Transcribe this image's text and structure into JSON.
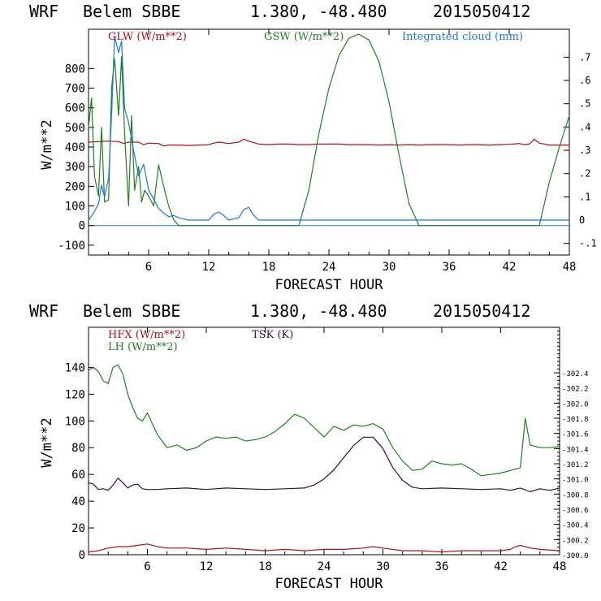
{
  "colors": {
    "red": "#b01010",
    "green": "#208020",
    "blue": "#1a78d8",
    "purple": "#3a0a4a"
  },
  "panels": {
    "top": {
      "model": "WRF",
      "station": "Belem SBBE",
      "coords": "1.380, -48.480",
      "run": "2015050412",
      "legend": {
        "glw": "GLW (W/m**2)",
        "gsw": "GSW (W/m**2)",
        "cloud": "Integrated cloud (mm)"
      },
      "ylabel": "W/m**2",
      "xlabel": "FORECAST HOUR"
    },
    "bottom": {
      "model": "WRF",
      "station": "Belem SBBE",
      "coords": "1.380, -48.480",
      "run": "2015050412",
      "legend": {
        "hfx": "HFX (W/m**2)",
        "lh": "LH  (W/m**2)",
        "tsk": "TSK (K)"
      },
      "ylabel": "W/m**2",
      "xlabel": "FORECAST HOUR"
    }
  },
  "chart_data": [
    {
      "type": "line",
      "title": "WRF  Belem SBBE  1.380, -48.480  2015050412",
      "xlabel": "FORECAST HOUR",
      "ylabel": "W/m**2",
      "xlim": [
        0,
        48
      ],
      "ylim": [
        -150,
        1000
      ],
      "y2lim": [
        -0.15,
        0.82
      ],
      "x_ticks": [
        "6",
        "12",
        "18",
        "24",
        "30",
        "36",
        "42",
        "48"
      ],
      "y_ticks": [
        "-100",
        "0",
        "100",
        "200",
        "300",
        "400",
        "500",
        "600",
        "700",
        "800"
      ],
      "y2_ticks": [
        "-.1",
        "0",
        ".1",
        ".2",
        ".3",
        ".4",
        ".5",
        ".6",
        ".7"
      ],
      "series": [
        {
          "name": "GLW (W/m**2)",
          "axis": "left",
          "x": [
            0,
            1,
            2,
            3,
            3.5,
            4,
            5,
            5.5,
            6,
            7,
            7.5,
            8,
            9,
            10,
            11,
            12,
            12.5,
            13,
            14,
            15,
            15.5,
            16,
            17,
            18,
            19,
            20,
            21,
            22,
            23,
            24,
            25,
            26,
            27,
            28,
            29,
            30,
            31,
            32,
            33,
            34,
            35,
            36,
            37,
            38,
            39,
            40,
            41,
            42,
            43,
            43.5,
            44,
            44.5,
            45,
            46,
            47,
            48
          ],
          "y": [
            425,
            428,
            430,
            428,
            418,
            425,
            425,
            412,
            420,
            418,
            405,
            410,
            410,
            408,
            410,
            412,
            420,
            425,
            418,
            425,
            440,
            430,
            415,
            412,
            415,
            415,
            412,
            412,
            415,
            415,
            415,
            412,
            412,
            412,
            410,
            412,
            410,
            412,
            410,
            412,
            412,
            412,
            410,
            412,
            412,
            410,
            412,
            414,
            418,
            412,
            415,
            440,
            420,
            410,
            410,
            410
          ]
        },
        {
          "name": "GSW (W/m**2)",
          "axis": "left",
          "x": [
            0,
            0.3,
            0.6,
            1,
            1.3,
            1.6,
            2,
            2.3,
            2.6,
            3,
            3.3,
            3.6,
            4,
            4.3,
            4.6,
            5,
            5.3,
            5.6,
            6,
            6.5,
            7,
            7.5,
            8,
            8.5,
            9,
            21,
            22,
            23,
            24,
            25,
            26,
            27,
            28,
            29,
            30,
            31,
            32,
            33,
            45,
            46,
            47,
            48
          ],
          "y": [
            500,
            650,
            250,
            150,
            500,
            120,
            130,
            700,
            850,
            560,
            860,
            470,
            100,
            560,
            180,
            300,
            120,
            180,
            150,
            100,
            310,
            200,
            100,
            30,
            0,
            0,
            180,
            470,
            700,
            865,
            955,
            975,
            945,
            835,
            630,
            360,
            110,
            0,
            0,
            220,
            400,
            560
          ]
        },
        {
          "name": "Integrated cloud (mm)",
          "axis": "right",
          "x": [
            0,
            0.5,
            1,
            1.3,
            1.6,
            2,
            2.3,
            2.6,
            3,
            3.3,
            3.6,
            4,
            4.5,
            5,
            5.5,
            6,
            6.5,
            7,
            7.5,
            8,
            8.5,
            9,
            9.5,
            10,
            12,
            12.5,
            13,
            13.5,
            14,
            15,
            15.5,
            16,
            16.5,
            17,
            44,
            48
          ],
          "y": [
            0,
            0.03,
            0.07,
            0.15,
            0.1,
            0.18,
            0.45,
            0.79,
            0.72,
            0.77,
            0.48,
            0.42,
            0.3,
            0.19,
            0.24,
            0.13,
            0.09,
            0.05,
            0.03,
            0.015,
            0.02,
            0.01,
            0.005,
            0,
            0,
            0.025,
            0.035,
            0.02,
            0,
            0.01,
            0.045,
            0.055,
            0.02,
            0,
            0,
            0
          ]
        }
      ]
    },
    {
      "type": "line",
      "title": "WRF  Belem SBBE  1.380, -48.480  2015050412",
      "xlabel": "FORECAST HOUR",
      "ylabel": "W/m**2",
      "xlim": [
        0,
        48
      ],
      "ylim": [
        0,
        170
      ],
      "y2lim": [
        300.0,
        303.0
      ],
      "x_ticks": [
        "6",
        "12",
        "18",
        "24",
        "30",
        "36",
        "42",
        "48"
      ],
      "y_ticks": [
        "0",
        "20",
        "40",
        "60",
        "80",
        "100",
        "120",
        "140"
      ],
      "y2_ticks": [
        "300.0",
        "300.2",
        "300.4",
        "300.6",
        "300.8",
        "301.0",
        "301.2",
        "301.4",
        "301.6",
        "301.8",
        "302.0",
        "302.2",
        "302.4"
      ],
      "series": [
        {
          "name": "HFX (W/m**2)",
          "axis": "left",
          "x": [
            0,
            1,
            2,
            3,
            4,
            5,
            6,
            7,
            8,
            10,
            12,
            14,
            16,
            18,
            20,
            22,
            24,
            26,
            28,
            29,
            30,
            32,
            34,
            36,
            38,
            40,
            42,
            43,
            43.5,
            44,
            45,
            46,
            48
          ],
          "y": [
            2,
            3,
            5,
            6,
            6,
            7,
            8,
            6,
            5,
            5,
            4,
            5,
            4,
            3,
            4,
            3,
            4,
            4,
            5,
            6,
            5,
            3,
            3,
            2,
            3,
            3,
            3,
            4,
            6,
            7,
            5,
            4,
            3
          ]
        },
        {
          "name": "LH  (W/m**2)",
          "axis": "left",
          "x": [
            0,
            0.5,
            1,
            1.5,
            2,
            2.5,
            3,
            3.5,
            4,
            4.5,
            5,
            5.5,
            6,
            6.5,
            7,
            7.5,
            8,
            9,
            10,
            11,
            12,
            13,
            14,
            15,
            16,
            17,
            18,
            19,
            20,
            21,
            22,
            23,
            24,
            25,
            26,
            27,
            28,
            29,
            30,
            31,
            32,
            33,
            34,
            35,
            36,
            37,
            38,
            39,
            40,
            41,
            42,
            43,
            44,
            44.5,
            45,
            46,
            47,
            48
          ],
          "y": [
            138,
            140,
            137,
            130,
            128,
            140,
            142,
            135,
            120,
            110,
            102,
            100,
            106,
            98,
            90,
            85,
            80,
            82,
            78,
            80,
            85,
            88,
            87,
            88,
            85,
            86,
            88,
            92,
            98,
            105,
            102,
            95,
            88,
            96,
            93,
            97,
            96,
            98,
            94,
            80,
            70,
            63,
            64,
            70,
            68,
            67,
            68,
            64,
            59,
            60,
            61,
            63,
            65,
            102,
            82,
            80,
            80,
            81
          ]
        },
        {
          "name": "TSK (K)",
          "axis": "right",
          "x": [
            0,
            0.5,
            1,
            1.5,
            2,
            2.5,
            3,
            3.5,
            4,
            4.5,
            5,
            5.5,
            6,
            7,
            8,
            10,
            12,
            14,
            16,
            18,
            20,
            22,
            23,
            24,
            25,
            26,
            27,
            28,
            29,
            30,
            31,
            32,
            33,
            34,
            36,
            38,
            40,
            42,
            43,
            44,
            45,
            46,
            47,
            48
          ],
          "y": [
            300.95,
            300.93,
            300.86,
            300.87,
            300.85,
            300.92,
            301.01,
            300.95,
            300.88,
            300.92,
            300.93,
            300.87,
            300.86,
            300.86,
            300.87,
            300.88,
            300.86,
            300.88,
            300.87,
            300.86,
            300.87,
            300.88,
            300.92,
            301.0,
            301.12,
            301.28,
            301.44,
            301.55,
            301.55,
            301.4,
            301.15,
            300.98,
            300.89,
            300.87,
            300.88,
            300.87,
            300.86,
            300.87,
            300.85,
            300.88,
            300.83,
            300.87,
            300.85,
            300.88
          ]
        }
      ]
    }
  ]
}
